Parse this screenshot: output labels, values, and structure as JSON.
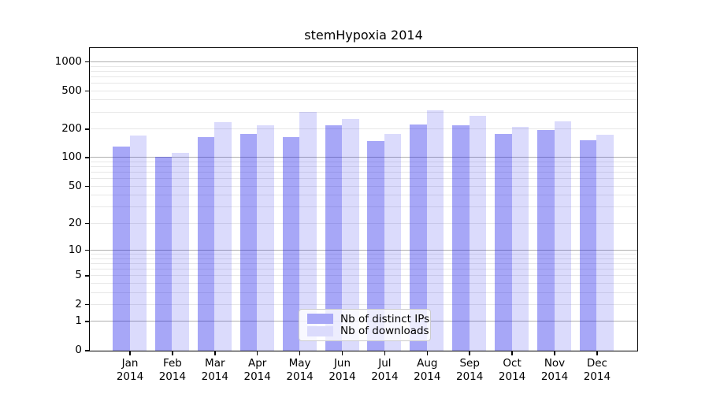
{
  "chart_data": {
    "type": "bar",
    "title": "stemHypoxia 2014",
    "categories": [
      "Jan",
      "Feb",
      "Mar",
      "Apr",
      "May",
      "Jun",
      "Jul",
      "Aug",
      "Sep",
      "Oct",
      "Nov",
      "Dec"
    ],
    "category_year": "2014",
    "series": [
      {
        "name": "Nb of distinct IPs",
        "swatch_color": "#a7a7f7",
        "fill_color": "#1111e95e",
        "values": [
          131,
          102,
          165,
          178,
          166,
          222,
          151,
          225,
          220,
          178,
          197,
          153
        ]
      },
      {
        "name": "Nb of downloads",
        "swatch_color": "#dbdbfc",
        "fill_color": "#1e1eec29",
        "values": [
          171,
          114,
          237,
          219,
          304,
          258,
          180,
          315,
          275,
          213,
          242,
          174
        ]
      }
    ],
    "xlabel": "",
    "ylabel": "",
    "yscale": "log1p",
    "ylim": [
      0,
      1400
    ],
    "yticks": [
      0,
      1,
      2,
      5,
      10,
      20,
      50,
      100,
      200,
      500,
      1000
    ],
    "grid": {
      "major_values": [
        1,
        10,
        100,
        1000
      ],
      "minor_values": [
        2,
        3,
        4,
        5,
        6,
        7,
        8,
        9,
        20,
        30,
        40,
        50,
        60,
        70,
        80,
        90,
        200,
        300,
        400,
        500,
        600,
        700,
        800,
        900
      ]
    },
    "legend_position": "bottom-center"
  },
  "style": {
    "grid_major_color": "#b0b0b0",
    "grid_minor_color": "#e7e7e7",
    "axis_color": "#000000",
    "legend_border_color": "#cccccc"
  }
}
